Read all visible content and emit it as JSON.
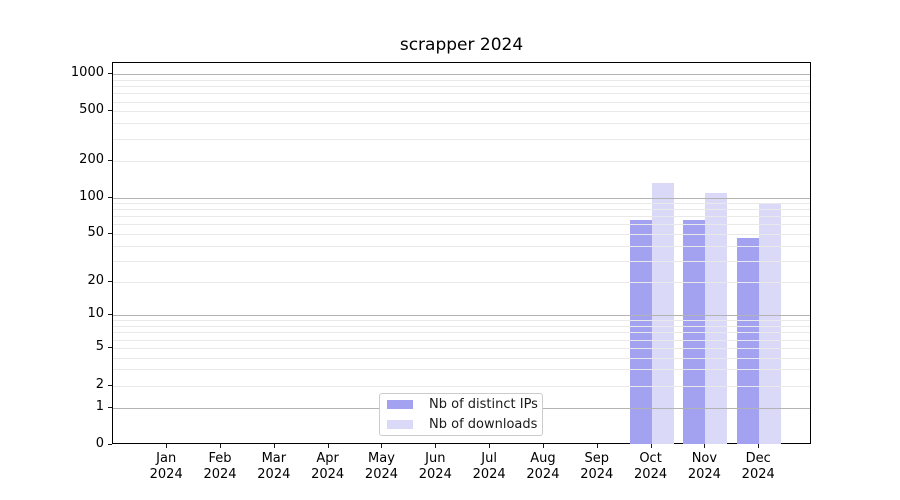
{
  "chart_data": {
    "type": "bar",
    "title": "scrapper 2024",
    "categories": [
      "Jan",
      "Feb",
      "Mar",
      "Apr",
      "May",
      "Jun",
      "Jul",
      "Aug",
      "Sep",
      "Oct",
      "Nov",
      "Dec"
    ],
    "year": "2024",
    "series": [
      {
        "name": "Nb of distinct IPs",
        "color": "#a2a2f0",
        "values": [
          0,
          0,
          0,
          0,
          0,
          0,
          0,
          0,
          0,
          65,
          65,
          46
        ]
      },
      {
        "name": "Nb of downloads",
        "color": "#dadaf8",
        "values": [
          0,
          0,
          0,
          0,
          0,
          0,
          0,
          0,
          0,
          133,
          110,
          91
        ]
      }
    ],
    "yscale": "symlog",
    "yticks": [
      0,
      1,
      2,
      5,
      10,
      20,
      50,
      100,
      200,
      500,
      1000
    ],
    "major_grid_values": [
      1,
      10,
      100,
      1000
    ],
    "minor_grid_values": [
      2,
      3,
      4,
      5,
      6,
      7,
      8,
      9,
      20,
      30,
      40,
      50,
      60,
      70,
      80,
      90,
      200,
      300,
      400,
      500,
      600,
      700,
      800,
      900
    ],
    "ylim": [
      0,
      1400
    ],
    "grid": "both",
    "legend_position": "lower center",
    "colors": {
      "axis": "#000000",
      "major_grid": "#b3b3b3",
      "minor_grid": "#e9e9e9",
      "background": "#ffffff"
    }
  }
}
